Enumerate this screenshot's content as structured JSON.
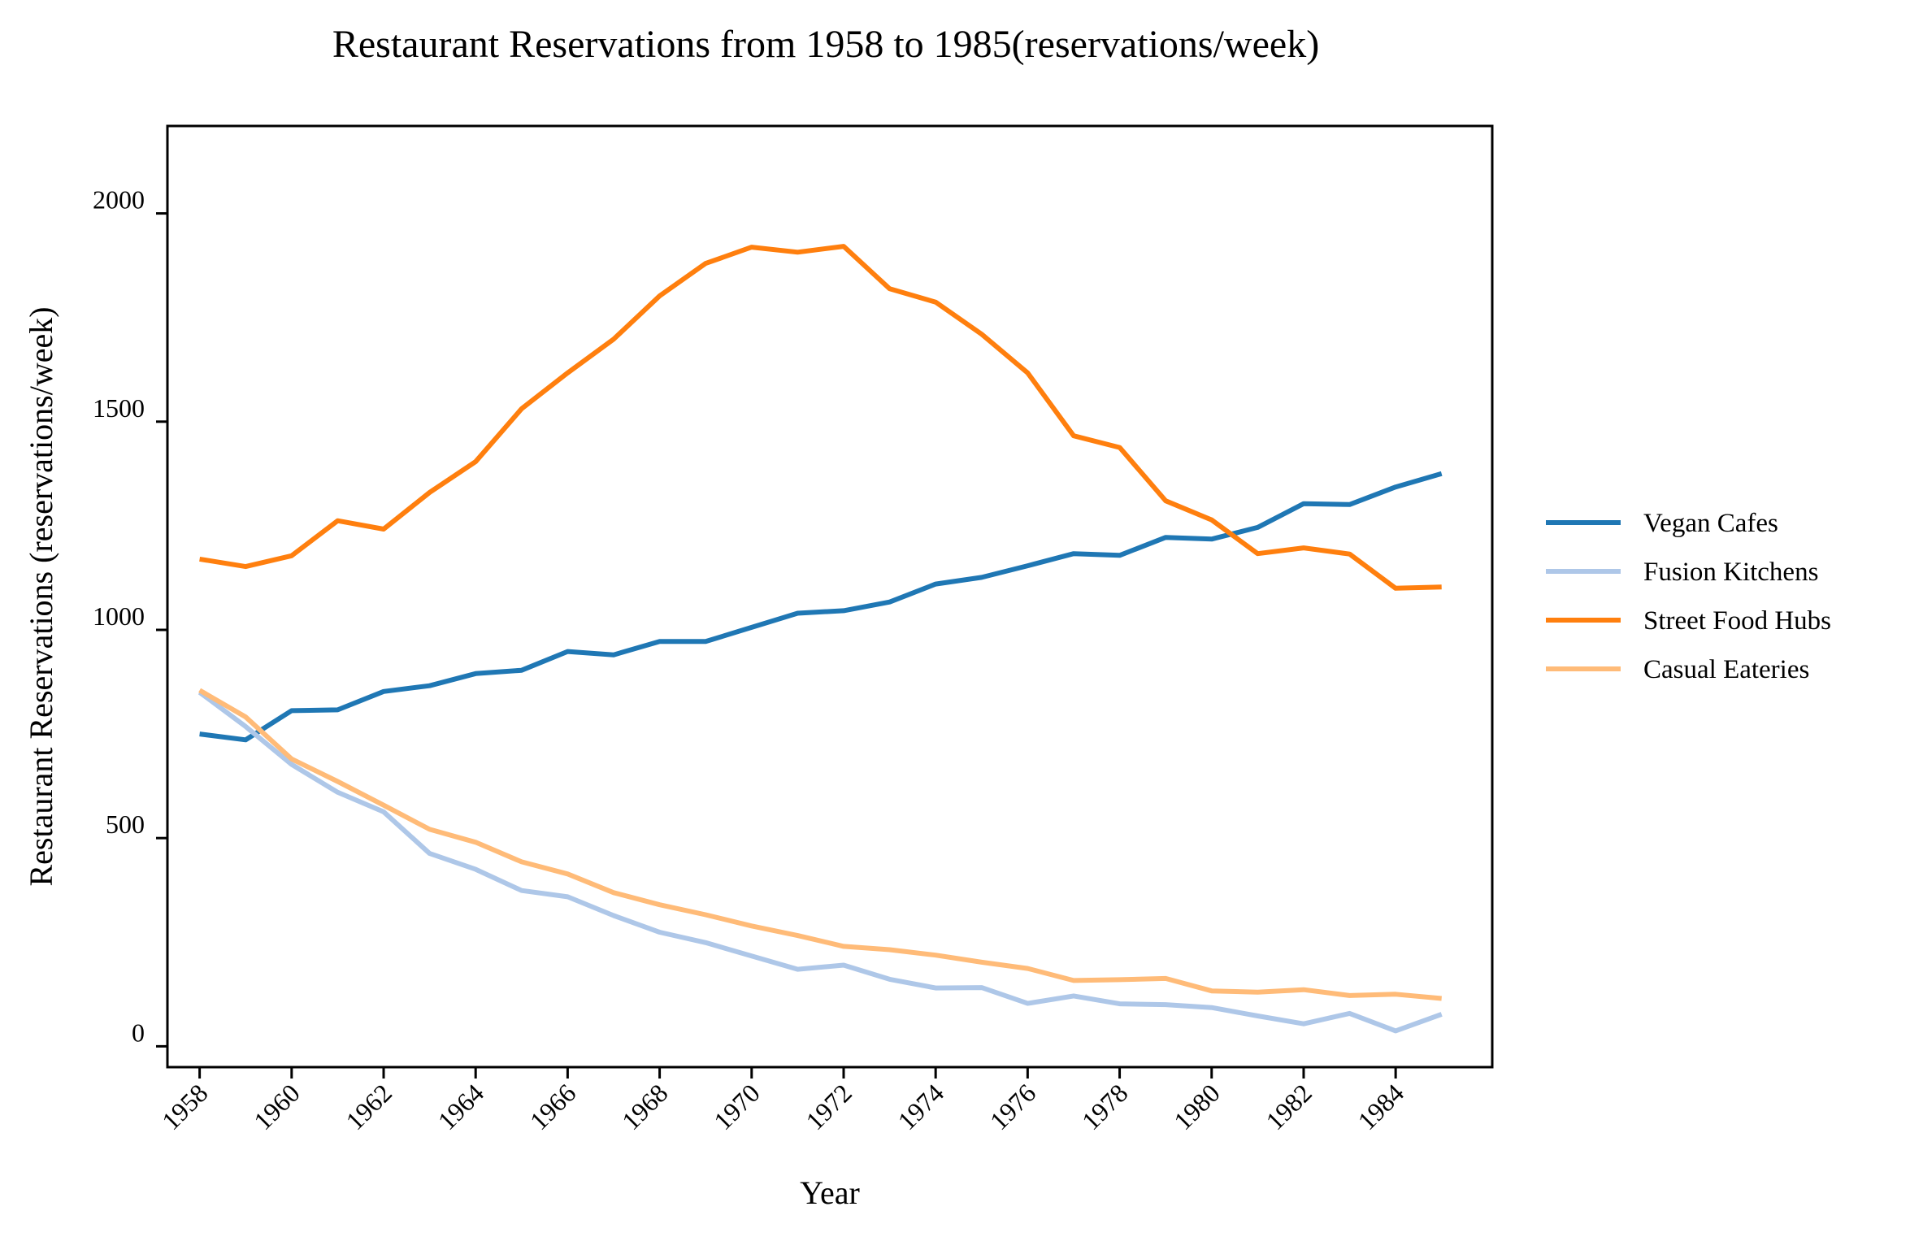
{
  "chart_data": {
    "type": "line",
    "title": "Restaurant Reservations from 1958 to 1985(reservations/week)",
    "xlabel": "Year",
    "ylabel": "Restaurant Reservations (reservations/week)",
    "x": [
      1958,
      1959,
      1960,
      1961,
      1962,
      1963,
      1964,
      1965,
      1966,
      1967,
      1968,
      1969,
      1970,
      1971,
      1972,
      1973,
      1974,
      1975,
      1976,
      1977,
      1978,
      1979,
      1980,
      1981,
      1982,
      1983,
      1984,
      1985
    ],
    "xticks": [
      "1958",
      "1960",
      "1962",
      "1964",
      "1966",
      "1968",
      "1970",
      "1972",
      "1974",
      "1976",
      "1978",
      "1980",
      "1982",
      "1984"
    ],
    "yticks": [
      "0",
      "500",
      "1000",
      "1500",
      "2000"
    ],
    "xlim": [
      1957.3,
      1986.1
    ],
    "ylim": [
      -50,
      2210
    ],
    "grid": false,
    "legend_position": "right",
    "series": [
      {
        "name": "Vegan Cafes",
        "color": "#1f77b4",
        "values": [
          750,
          736,
          806,
          808,
          852,
          866,
          895,
          903,
          948,
          940,
          972,
          972,
          1006,
          1040,
          1046,
          1067,
          1110,
          1126,
          1154,
          1183,
          1179,
          1222,
          1218,
          1246,
          1303,
          1301,
          1343,
          1375
        ]
      },
      {
        "name": "Fusion Kitchens",
        "color": "#aec7e8",
        "values": [
          850,
          768,
          677,
          610,
          563,
          463,
          425,
          374,
          359,
          314,
          274,
          249,
          217,
          185,
          195,
          161,
          140,
          141,
          103,
          121,
          102,
          100,
          93,
          73,
          54,
          79,
          37,
          77
        ]
      },
      {
        "name": "Street Food Hubs",
        "color": "#ff7f0e",
        "values": [
          1170,
          1152,
          1178,
          1262,
          1242,
          1330,
          1404,
          1531,
          1617,
          1698,
          1802,
          1880,
          1919,
          1907,
          1921,
          1819,
          1787,
          1710,
          1617,
          1466,
          1438,
          1310,
          1264,
          1183,
          1197,
          1182,
          1100,
          1103
        ]
      },
      {
        "name": "Casual Eateries",
        "color": "#ffbb78",
        "values": [
          855,
          791,
          690,
          636,
          579,
          521,
          490,
          443,
          414,
          369,
          340,
          316,
          289,
          266,
          240,
          232,
          219,
          202,
          187,
          158,
          160,
          163,
          133,
          130,
          136,
          122,
          125,
          115
        ]
      }
    ]
  }
}
